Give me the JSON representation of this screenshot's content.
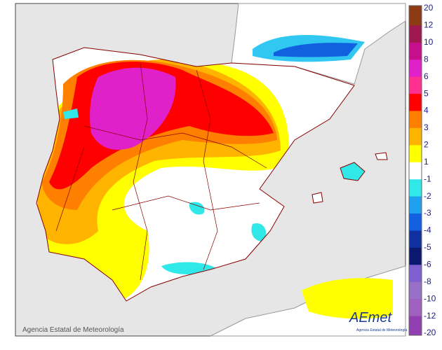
{
  "legend": {
    "labels": [
      "20",
      "12",
      "10",
      "8",
      "6",
      "5",
      "4",
      "3",
      "2",
      "1",
      "-1",
      "-2",
      "-3",
      "-4",
      "-5",
      "-6",
      "-8",
      "-10",
      "-12",
      "-20"
    ],
    "colors": [
      "#8c3a14",
      "#a01850",
      "#c4108c",
      "#e020c8",
      "#ff3090",
      "#ff0000",
      "#ff8000",
      "#ffb400",
      "#ffff00",
      "#ffffff",
      "#30e8e8",
      "#20a0f0",
      "#1060e0",
      "#1030a0",
      "#0a1870",
      "#8060d0",
      "#9870c8",
      "#a060c0",
      "#9040b0"
    ]
  },
  "credit": "Agencia Estatal de Meteorología",
  "logo": {
    "name": "AEmet",
    "caption": "Agencia Estatal de Meteorología"
  }
}
